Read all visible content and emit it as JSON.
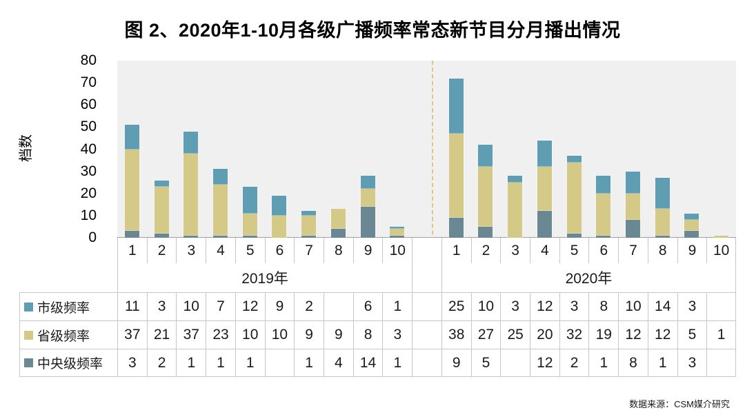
{
  "title": "图 2、2020年1-10月各级广播频率常态新节目分月播出情况",
  "source": "数据来源：CSM媒介研究",
  "chart_data": {
    "type": "bar",
    "stacked": true,
    "title": "图 2、2020年1-10月各级广播频率常态新节目分月播出情况",
    "ylabel": "档数",
    "xlabel": "",
    "ylim": [
      0,
      80
    ],
    "yticks": [
      0,
      10,
      20,
      30,
      40,
      50,
      60,
      70,
      80
    ],
    "grid": false,
    "legend_position": "table-left",
    "plot_background": "#f0f0f0",
    "separator_style": "dashed",
    "separator_color": "#d9c87e",
    "month_labels": [
      "1",
      "2",
      "3",
      "4",
      "5",
      "6",
      "7",
      "8",
      "9",
      "10"
    ],
    "groups": [
      {
        "label": "2019年"
      },
      {
        "label": "2020年"
      }
    ],
    "series": [
      {
        "name": "市级频率",
        "color": "#5f9db2",
        "values_2019": [
          11,
          3,
          10,
          7,
          12,
          9,
          2,
          null,
          6,
          1
        ],
        "values_2020": [
          25,
          10,
          3,
          12,
          3,
          8,
          10,
          14,
          3,
          null
        ]
      },
      {
        "name": "省级频率",
        "color": "#d5c987",
        "values_2019": [
          37,
          21,
          37,
          23,
          10,
          10,
          9,
          9,
          8,
          3
        ],
        "values_2020": [
          38,
          27,
          25,
          20,
          32,
          19,
          12,
          12,
          5,
          1
        ]
      },
      {
        "name": "中央级频率",
        "color": "#6a8894",
        "values_2019": [
          3,
          2,
          1,
          1,
          1,
          null,
          1,
          4,
          14,
          1
        ],
        "values_2020": [
          9,
          5,
          null,
          12,
          2,
          1,
          8,
          1,
          3,
          null
        ]
      }
    ]
  }
}
